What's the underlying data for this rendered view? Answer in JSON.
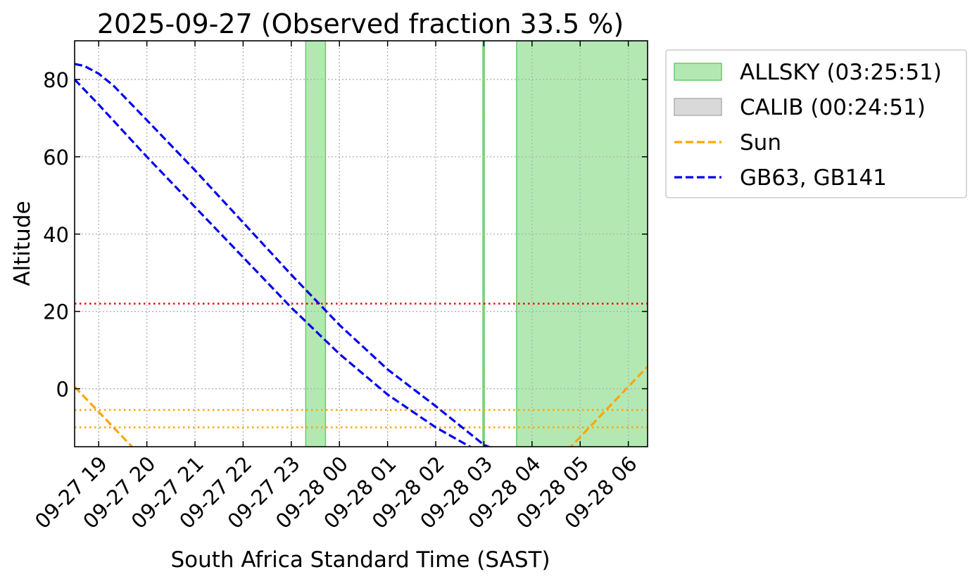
{
  "chart_data": {
    "type": "line",
    "title": "2025-09-27 (Observed fraction 33.5 %)",
    "xlabel": "South Africa Standard Time (SAST)",
    "ylabel": "Altitude",
    "x_unit": "hours since 2025-09-27 00:00 SAST",
    "xlim": [
      18.5,
      30.4
    ],
    "ylim": [
      -15,
      90
    ],
    "xticks": [
      {
        "x": 19,
        "label": "09-27 19"
      },
      {
        "x": 20,
        "label": "09-27 20"
      },
      {
        "x": 21,
        "label": "09-27 21"
      },
      {
        "x": 22,
        "label": "09-27 22"
      },
      {
        "x": 23,
        "label": "09-27 23"
      },
      {
        "x": 24,
        "label": "09-28 00"
      },
      {
        "x": 25,
        "label": "09-28 01"
      },
      {
        "x": 26,
        "label": "09-28 02"
      },
      {
        "x": 27,
        "label": "09-28 03"
      },
      {
        "x": 28,
        "label": "09-28 04"
      },
      {
        "x": 29,
        "label": "09-28 05"
      },
      {
        "x": 30,
        "label": "09-28 06"
      }
    ],
    "yticks": [
      0,
      20,
      40,
      60,
      80
    ],
    "grid": true,
    "legend_position": "outside-right",
    "shaded_spans": [
      {
        "name": "ALLSKY",
        "legend_label": "ALLSKY (03:25:51)",
        "color": "#b3e8b3",
        "edge": "#66cc66",
        "spans": [
          [
            23.3,
            23.71
          ],
          [
            26.98,
            27.0
          ],
          [
            27.68,
            30.65
          ]
        ]
      },
      {
        "name": "CALIB",
        "legend_label": "CALIB (00:24:51)",
        "color": "#d9d9d9",
        "edge": "#b0b0b0",
        "spans": [
          [
            30.65,
            31.06
          ]
        ]
      }
    ],
    "series": [
      {
        "name": "Sun",
        "legend_label": "Sun",
        "color": "#ffa500",
        "style": "dashed",
        "x": [
          18.5,
          19.0,
          19.5,
          20.0,
          20.5,
          28.0,
          28.5,
          29.0,
          29.5,
          30.0,
          30.4
        ],
        "y": [
          0.5,
          -6.0,
          -12.5,
          -19.0,
          -25.5,
          -25.5,
          -19.0,
          -12.5,
          -6.0,
          0.5,
          5.7
        ]
      },
      {
        "name": "GB63",
        "legend_label": "GB63, GB141",
        "color": "#0000ee",
        "style": "dashed",
        "x": [
          18.5,
          19.0,
          20.0,
          21.0,
          22.0,
          23.0,
          24.0,
          25.0,
          26.0,
          26.5,
          27.0,
          27.5,
          28.5
        ],
        "y": [
          80,
          73.5,
          60,
          47,
          34,
          21,
          9,
          -1.5,
          -10,
          -13.5,
          -17,
          -20,
          -25
        ]
      },
      {
        "name": "GB141",
        "legend_label": "",
        "color": "#0000ee",
        "style": "dashed",
        "x": [
          18.5,
          18.7,
          19.0,
          19.3,
          20.0,
          21.0,
          22.0,
          23.0,
          24.0,
          25.0,
          26.0,
          26.5,
          27.0,
          28.0,
          28.5
        ],
        "y": [
          84,
          83.5,
          81.5,
          78.5,
          69.5,
          56.5,
          43,
          29.5,
          16.5,
          5,
          -4.5,
          -9.5,
          -14.5,
          -19.5,
          -25
        ]
      }
    ],
    "reference_lines": [
      {
        "y": 22,
        "color": "#ff0000",
        "style": "dotted"
      },
      {
        "y": -5.5,
        "color": "#ffa500",
        "style": "dotted"
      },
      {
        "y": -10,
        "color": "#ffa500",
        "style": "dotted"
      }
    ]
  }
}
